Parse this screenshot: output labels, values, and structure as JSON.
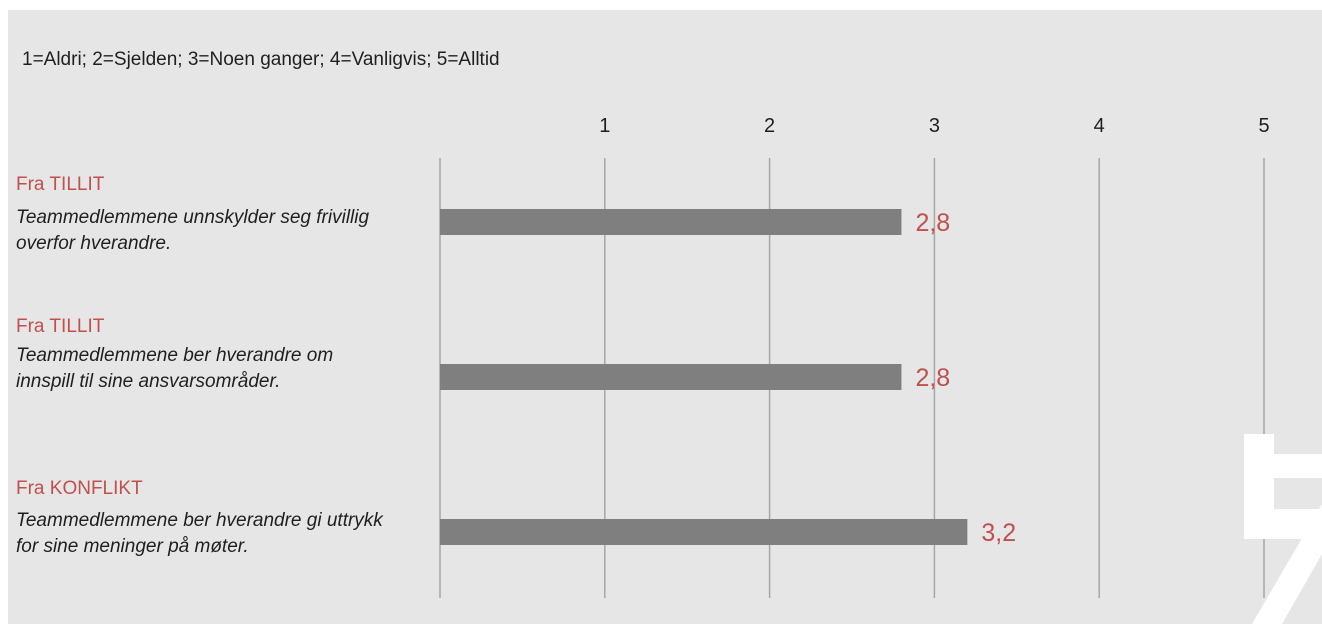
{
  "legend": "1=Aldri; 2=Sjelden; 3=Noen ganger; 4=Vanligvis; 5=Alltid",
  "colors": {
    "panel": "#e6e6e6",
    "bar": "#7f7f7f",
    "value_label": "#c0504d",
    "category_title": "#c0504d",
    "grid": "#a6a6a6"
  },
  "items": [
    {
      "title": "Fra TILLIT",
      "desc": "Teammedlemmene unnskylder seg frivillig overfor hverandre."
    },
    {
      "title": "Fra TILLIT",
      "desc": "Teammedlemmene ber hverandre om innspill til sine ansvarsområder."
    },
    {
      "title": "Fra KONFLIKT",
      "desc": "Teammedlemmene ber hverandre gi uttrykk for sine meninger på møter."
    }
  ],
  "chart_data": {
    "type": "bar",
    "orientation": "horizontal",
    "categories": [
      "Fra TILLIT Teammedlemmene unnskylder seg frivillig overfor hverandre.",
      "Fra TILLIT Teammedlemmene ber hverandre om innspill til sine ansvarsområder.",
      "Fra KONFLIKT Teammedlemmene ber hverandre gi uttrykk for sine meninger på møter."
    ],
    "values": [
      2.8,
      2.8,
      3.2
    ],
    "value_labels": [
      "2,8",
      "2,8",
      "3,2"
    ],
    "xticks": [
      "1",
      "2",
      "3",
      "4",
      "5"
    ],
    "xlim": [
      0,
      5
    ],
    "grid": true,
    "tick_position": "top"
  }
}
